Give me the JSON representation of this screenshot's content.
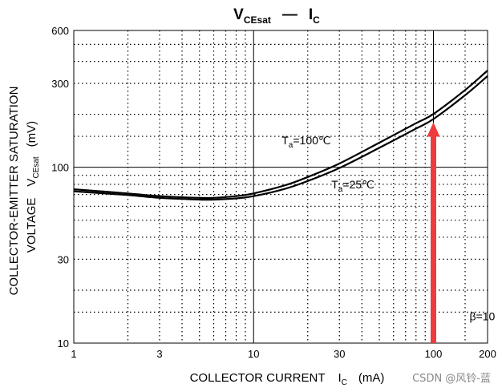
{
  "chart_data": {
    "type": "line",
    "title": {
      "left_main": "V",
      "left_sub": "CEsat",
      "dash": "—",
      "right_main": "I",
      "right_sub": "C"
    },
    "xlabel": {
      "main": "COLLECTOR CURRENT",
      "sym": "I",
      "sub": "C",
      "unit": "(mA)"
    },
    "ylabel": {
      "line1": "COLLECTOR-EMITTER SATURATION",
      "line2_text": "VOLTAGE",
      "line2_sym": "V",
      "line2_sub": "CEsat",
      "line2_unit": "(mV)"
    },
    "x_scale": "log",
    "y_scale": "log",
    "xlim": [
      1,
      200
    ],
    "ylim": [
      10,
      600
    ],
    "x_ticks": [
      1,
      3,
      10,
      30,
      100,
      200
    ],
    "y_ticks": [
      10,
      30,
      100,
      300,
      600
    ],
    "x_tick_labels": [
      "1",
      "3",
      "10",
      "30",
      "100",
      "200"
    ],
    "y_tick_labels": [
      "10",
      "30",
      "100",
      "300",
      "600"
    ],
    "grid": "dotted minor, solid at 10 and 100",
    "series": [
      {
        "name_main": "T",
        "name_sub": "a",
        "name_rest": "=100℃",
        "x": [
          1,
          2,
          3,
          5,
          6,
          8,
          10,
          15,
          20,
          30,
          50,
          80,
          100,
          150,
          200
        ],
        "y": [
          75,
          71,
          68.5,
          67,
          67,
          68.5,
          71,
          79,
          88,
          105,
          138,
          178,
          201,
          275,
          355
        ]
      },
      {
        "name_main": "T",
        "name_sub": "a",
        "name_rest": "=25℃",
        "x": [
          1,
          2,
          3,
          5,
          6,
          8,
          10,
          15,
          20,
          30,
          50,
          80,
          100,
          150,
          200
        ],
        "y": [
          73,
          69.5,
          67,
          65.5,
          65.5,
          66.5,
          68.5,
          75.5,
          83.5,
          99,
          129,
          166,
          188,
          257,
          330
        ]
      }
    ],
    "annotations": {
      "beta": "β=10",
      "arrow_x": 100,
      "arrow_color": "#ee3b3b"
    }
  },
  "watermark": "CSDN @风铃-蓝"
}
